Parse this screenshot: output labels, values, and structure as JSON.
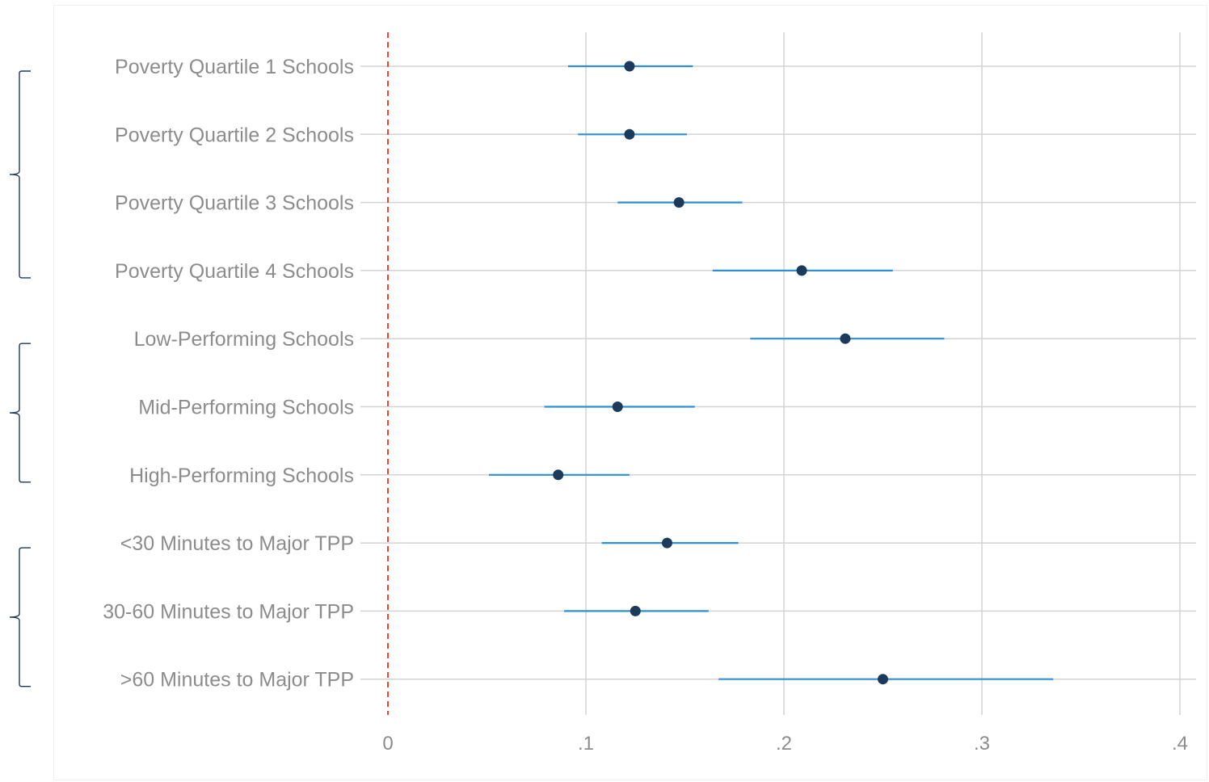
{
  "chart_data": {
    "type": "scatter",
    "subtype": "coefficient-plot",
    "title": "",
    "xlabel": "",
    "ylabel": "",
    "xlim": [
      0,
      0.4
    ],
    "xticks": [
      0,
      0.1,
      0.2,
      0.3,
      0.4
    ],
    "xtick_labels": [
      "0",
      ".1",
      ".2",
      ".3",
      ".4"
    ],
    "reference_line": {
      "x": 0,
      "style": "dashed",
      "color": "#e8472b"
    },
    "grid": true,
    "categories": [
      "Poverty Quartile 1 Schools",
      "Poverty Quartile 2 Schools",
      "Poverty Quartile 3 Schools",
      "Poverty Quartile 4 Schools",
      "Low-Performing Schools",
      "Mid-Performing Schools",
      "High-Performing Schools",
      "<30 Minutes to Major TPP",
      "30-60 Minutes to Major TPP",
      ">60 Minutes to Major TPP"
    ],
    "estimates": [
      0.122,
      0.122,
      0.147,
      0.209,
      0.231,
      0.116,
      0.086,
      0.141,
      0.125,
      0.25
    ],
    "ci_low": [
      0.091,
      0.096,
      0.116,
      0.164,
      0.183,
      0.079,
      0.051,
      0.108,
      0.089,
      0.167
    ],
    "ci_high": [
      0.154,
      0.151,
      0.179,
      0.255,
      0.281,
      0.155,
      0.122,
      0.177,
      0.162,
      0.336
    ],
    "groups": [
      {
        "start": 0,
        "end": 3
      },
      {
        "start": 4,
        "end": 6
      },
      {
        "start": 7,
        "end": 9
      }
    ],
    "colors": {
      "point": "#1b3a5c",
      "ci": "#2f8fd0",
      "grid": "#d3d3d3",
      "bracket": "#1b3a5c"
    }
  }
}
